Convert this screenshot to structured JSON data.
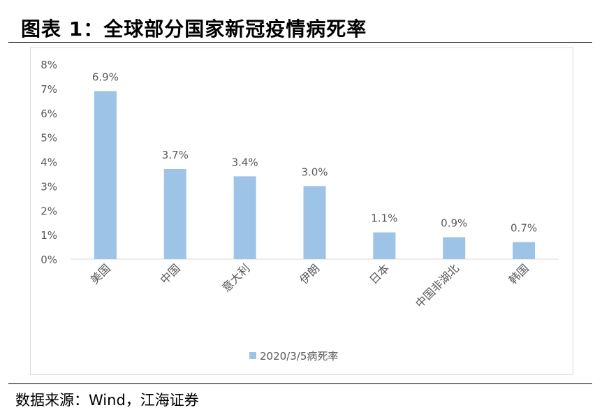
{
  "header": {
    "title": "图表 1：全球部分国家新冠疫情病死率"
  },
  "footer": {
    "source": "数据来源：Wind，江海证券"
  },
  "colors": {
    "bar": "#9dc3e6",
    "axis": "#d9d9d9",
    "text": "#595959"
  },
  "chart_data": {
    "type": "bar",
    "title": "",
    "xlabel": "",
    "ylabel": "",
    "categories": [
      "美国",
      "中国",
      "意大利",
      "伊朗",
      "日本",
      "中国非湖北",
      "韩国"
    ],
    "series": [
      {
        "name": "2020/3/5病死率",
        "values": [
          6.9,
          3.7,
          3.4,
          3.0,
          1.1,
          0.9,
          0.7
        ],
        "labels": [
          "6.9%",
          "3.7%",
          "3.4%",
          "3.0%",
          "1.1%",
          "0.9%",
          "0.7%"
        ]
      }
    ],
    "ylim": [
      0,
      8
    ],
    "yticks": [
      "0%",
      "1%",
      "2%",
      "3%",
      "4%",
      "5%",
      "6%",
      "7%",
      "8%"
    ],
    "grid": false,
    "legend": "bottom"
  }
}
